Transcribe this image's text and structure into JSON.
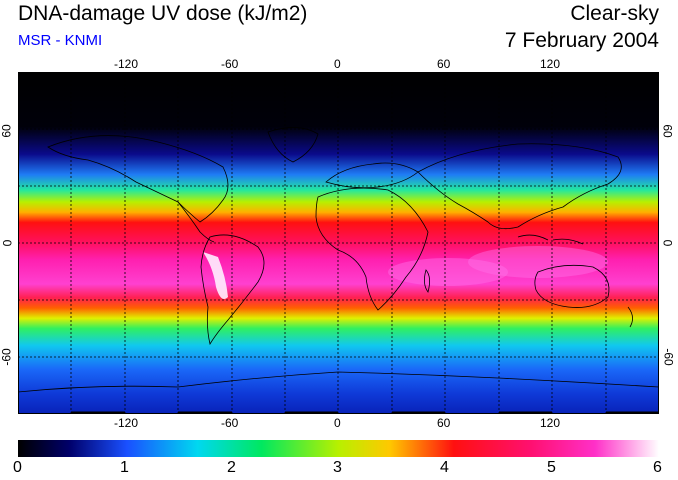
{
  "header": {
    "title": "DNA-damage UV dose (kJ/m2)",
    "subtitle": "MSR - KNMI",
    "mode": "Clear-sky",
    "date": "7 February 2004"
  },
  "map": {
    "lon_ticks": [
      "-120",
      "-60",
      "0",
      "60",
      "120"
    ],
    "lat_ticks": [
      "60",
      "0",
      "-60"
    ],
    "colors": {
      "subtitle": "#0000ff"
    }
  },
  "colorbar": {
    "labels": [
      "0",
      "1",
      "2",
      "3",
      "4",
      "5",
      "6"
    ]
  }
}
